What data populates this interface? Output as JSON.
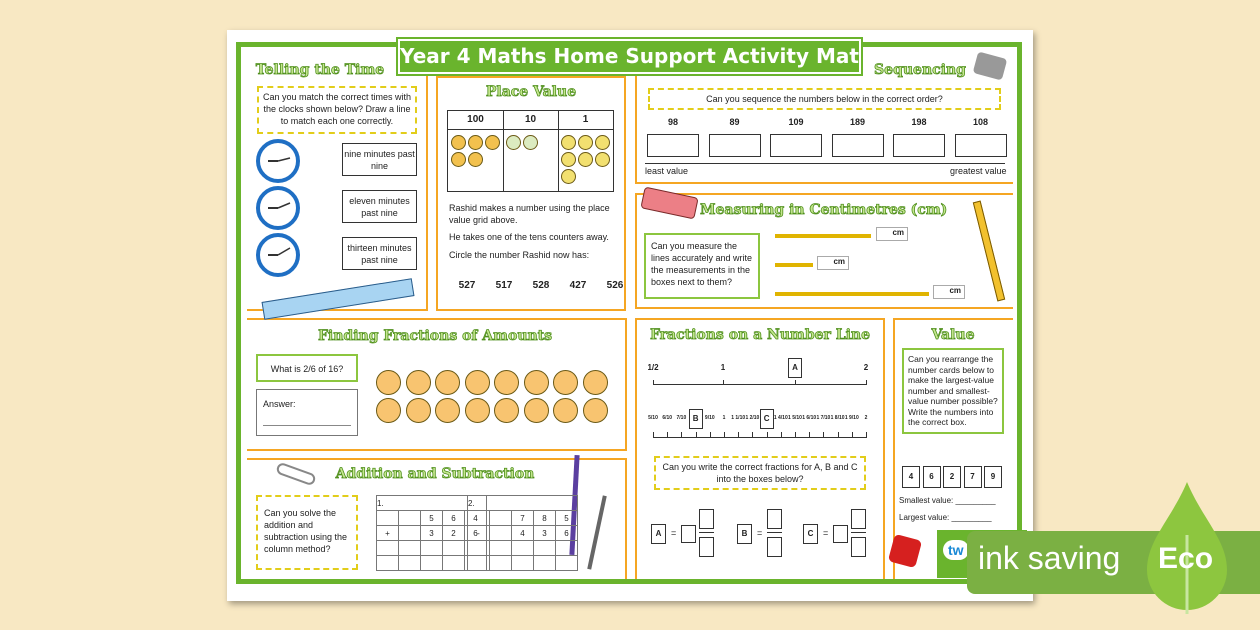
{
  "title": "Year 4 Maths Home Support Activity Mat",
  "colors": {
    "green": "#6ab42d",
    "orange": "#f5a623",
    "dashed": "#e2cd1a",
    "coin": "#f8c470",
    "background": "#f8e8c3"
  },
  "time": {
    "title": "Telling the Time",
    "prompt": "Can you match the correct times with the clocks shown below? Draw a line to match each one correctly.",
    "options": [
      "nine minutes past nine",
      "eleven minutes past nine",
      "thirteen minutes past nine"
    ]
  },
  "place_value": {
    "title": "Place Value",
    "headers": [
      "100",
      "10",
      "1"
    ],
    "counters": {
      "100": 5,
      "10": 2,
      "1": 7
    },
    "text1": "Rashid makes a number using the place value grid above.",
    "text2": "He takes one of the tens counters away.",
    "text3": "Circle the number Rashid now has:",
    "choices": [
      "527",
      "517",
      "528",
      "427",
      "526"
    ]
  },
  "sequencing": {
    "title": "Sequencing",
    "prompt": "Can you sequence the numbers below in the correct order?",
    "numbers": [
      "98",
      "89",
      "109",
      "189",
      "198",
      "108"
    ],
    "least": "least value",
    "greatest": "greatest value"
  },
  "measuring": {
    "title": "Measuring in Centimetres (cm)",
    "prompt": "Can you measure the lines accurately and write the measurements in the boxes next to them?",
    "unit": "cm"
  },
  "fractions_amounts": {
    "title": "Finding Fractions of Amounts",
    "question": "What is 2/6 of 16?",
    "answer_label": "Answer:",
    "counters": 16
  },
  "addition": {
    "title": "Addition and Subtraction",
    "prompt": "Can you solve the addition and subtraction using the column method?",
    "q1": {
      "num": "1.",
      "top": [
        "5",
        "6",
        "4"
      ],
      "op": "+",
      "bottom": [
        "3",
        "2",
        "6"
      ]
    },
    "q2": {
      "num": "2.",
      "top": [
        "7",
        "8",
        "5"
      ],
      "op": "-",
      "bottom": [
        "4",
        "3",
        "6"
      ]
    }
  },
  "number_line": {
    "title": "Fractions on a Number Line",
    "top_labels": [
      "1/2",
      "1",
      "A",
      "2"
    ],
    "bottom_labels": [
      "5/10",
      "6/10",
      "7/10",
      "B",
      "9/10",
      "1",
      "1 1/10",
      "1 2/10",
      "C",
      "1 4/10",
      "1 5/10",
      "1 6/10",
      "1 7/10",
      "1 8/10",
      "1 9/10",
      "2"
    ],
    "prompt": "Can you write the correct fractions for A, B and C into the boxes below?",
    "answers": [
      "A",
      "B",
      "C"
    ],
    "equals": "="
  },
  "value": {
    "title": "Value",
    "prompt": "Can you rearrange the number cards below to make the largest-value number and smallest-value number possible? Write the numbers into the correct box.",
    "cards": [
      "4",
      "6",
      "2",
      "7",
      "9"
    ],
    "smallest": "Smallest value: _________",
    "largest": "Largest value: _________"
  },
  "badge": {
    "brand": "tw",
    "text": "ink saving",
    "eco": "Eco"
  }
}
